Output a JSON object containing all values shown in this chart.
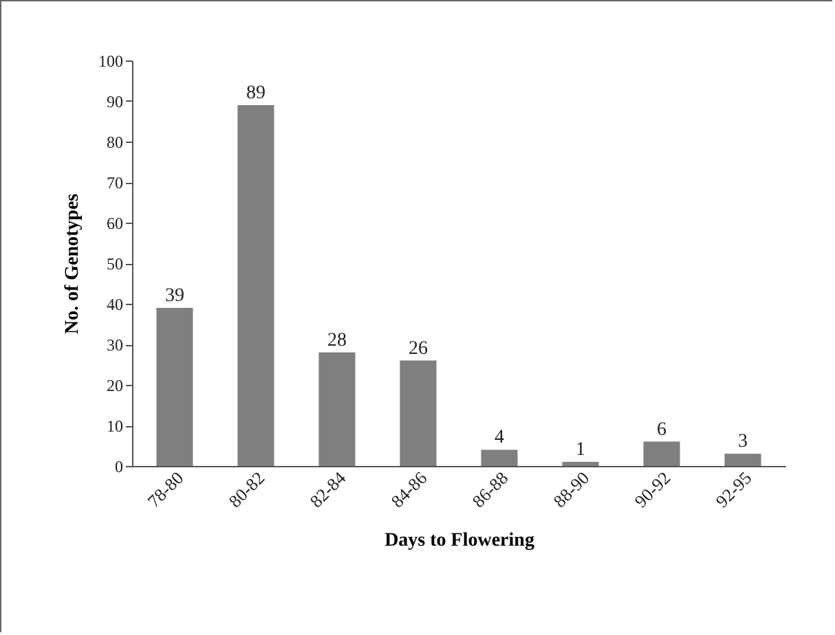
{
  "chart_data": {
    "type": "bar",
    "xlabel": "Days to Flowering",
    "ylabel": "No. of Genotypes",
    "categories": [
      "78-80",
      "80-82",
      "82-84",
      "84-86",
      "86-88",
      "88-90",
      "90-92",
      "92-95"
    ],
    "values": [
      39,
      89,
      28,
      26,
      4,
      1,
      6,
      3
    ],
    "color": "#7f7f7f",
    "ylim": [
      0,
      100
    ],
    "yticks": [
      0,
      10,
      20,
      30,
      40,
      50,
      60,
      70,
      80,
      90,
      100
    ],
    "data_labels": true
  }
}
